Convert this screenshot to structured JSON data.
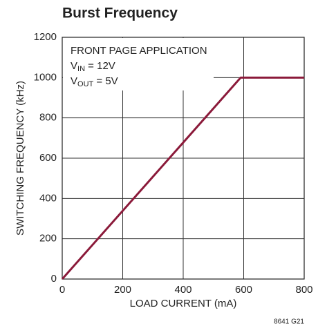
{
  "chart_data": {
    "type": "line",
    "title": "Burst Frequency",
    "x_label": "LOAD CURRENT (mA)",
    "y_label": "SWITCHING FREQUENCY (kHz)",
    "annotation": [
      {
        "text": "FRONT PAGE APPLICATION"
      },
      {
        "text": "V",
        "sub": "IN",
        "rest": " = 12V"
      },
      {
        "text": "V",
        "sub": "OUT",
        "rest": " = 5V"
      }
    ],
    "footnote": "8641 G21",
    "x": [
      0,
      490,
      590,
      800
    ],
    "series": [
      {
        "color": "#8b1a3a",
        "values": [
          0,
          830,
          1000,
          1000
        ]
      }
    ],
    "xlim": [
      0,
      800
    ],
    "xticks": [
      0,
      200,
      400,
      600,
      800
    ],
    "ylim": [
      0,
      1200
    ],
    "yticks": [
      0,
      200,
      400,
      600,
      800,
      1000,
      1200
    ],
    "grid": true
  }
}
